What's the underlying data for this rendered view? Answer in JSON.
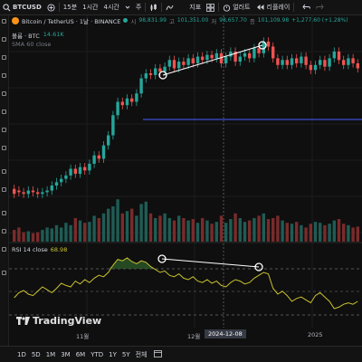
{
  "toolbar": {
    "symbol": "BTCUSD",
    "interval_15m": "15분",
    "interval_1h": "1시간",
    "interval_4h": "4시간",
    "interval_day": "주",
    "indicators": "지표",
    "alert": "얼러트",
    "replay": "리플레이"
  },
  "legend": {
    "title": "Bitcoin / TetherUS · 1날 · BINANCE",
    "open_label": "시",
    "open": "98,831.99",
    "high_label": "고",
    "high": "101,351.00",
    "low_label": "저",
    "low": "98,657.70",
    "close_label": "종",
    "close": "101,109.98",
    "change": "+1,277.60 (+1.28%)",
    "volume_label": "볼륨 · BTC",
    "volume_value": "14.61K",
    "sma_label": "SMA 60 close"
  },
  "rsi": {
    "label": "RSI 14 close",
    "value": "68.98"
  },
  "time_axis": {
    "nov": "11월",
    "dec": "12월",
    "y2025": "2025",
    "crosshair": "2024-12-08"
  },
  "logo": {
    "text": "TradingView"
  },
  "ranges": [
    "1D",
    "5D",
    "1M",
    "3M",
    "6M",
    "YTD",
    "1Y",
    "5Y",
    "전체"
  ],
  "colors": {
    "up": "#26a69a",
    "down": "#ef5350",
    "rsi": "#c9c230",
    "sma": "#4a5ef0"
  },
  "chart_data": {
    "type": "candlestick",
    "candles": [
      [
        0.18,
        0.15
      ],
      [
        0.17,
        0.16
      ],
      [
        0.16,
        0.15
      ],
      [
        0.15,
        0.17
      ],
      [
        0.17,
        0.16
      ],
      [
        0.16,
        0.15
      ],
      [
        0.15,
        0.16
      ],
      [
        0.16,
        0.17
      ],
      [
        0.17,
        0.2
      ],
      [
        0.2,
        0.22
      ],
      [
        0.22,
        0.24
      ],
      [
        0.24,
        0.26
      ],
      [
        0.26,
        0.3
      ],
      [
        0.3,
        0.27
      ],
      [
        0.27,
        0.31
      ],
      [
        0.31,
        0.29
      ],
      [
        0.29,
        0.33
      ],
      [
        0.33,
        0.38
      ],
      [
        0.38,
        0.36
      ],
      [
        0.36,
        0.44
      ],
      [
        0.44,
        0.5
      ],
      [
        0.5,
        0.62
      ],
      [
        0.62,
        0.7
      ],
      [
        0.7,
        0.68
      ],
      [
        0.68,
        0.72
      ],
      [
        0.72,
        0.7
      ],
      [
        0.7,
        0.75
      ],
      [
        0.75,
        0.84
      ],
      [
        0.84,
        0.87
      ],
      [
        0.87,
        0.86
      ],
      [
        0.86,
        0.9
      ],
      [
        0.9,
        0.88
      ],
      [
        0.88,
        0.91
      ],
      [
        0.91,
        0.95
      ],
      [
        0.95,
        0.9
      ],
      [
        0.9,
        0.94
      ],
      [
        0.94,
        0.92
      ],
      [
        0.92,
        0.96
      ],
      [
        0.96,
        0.93
      ],
      [
        0.93,
        0.97
      ],
      [
        0.97,
        0.95
      ],
      [
        0.95,
        0.98
      ],
      [
        0.98,
        0.96
      ],
      [
        0.96,
        0.99
      ],
      [
        0.99,
        0.93
      ],
      [
        0.93,
        0.97
      ],
      [
        0.97,
        1.0
      ],
      [
        1.0,
        0.94
      ],
      [
        0.94,
        0.97
      ],
      [
        0.97,
        0.99
      ],
      [
        0.99,
        0.96
      ],
      [
        0.96,
        1.02
      ],
      [
        1.02,
        0.99
      ],
      [
        0.99,
        1.06
      ],
      [
        1.06,
        1.03
      ],
      [
        1.03,
        0.96
      ],
      [
        0.96,
        0.92
      ],
      [
        0.92,
        0.95
      ],
      [
        0.95,
        0.92
      ],
      [
        0.92,
        0.96
      ],
      [
        0.96,
        0.93
      ],
      [
        0.93,
        0.97
      ],
      [
        0.97,
        0.92
      ],
      [
        0.92,
        0.89
      ],
      [
        0.89,
        0.92
      ],
      [
        0.92,
        0.95
      ],
      [
        0.95,
        0.91
      ],
      [
        0.91,
        0.96
      ],
      [
        0.96,
        1.0
      ],
      [
        1.0,
        0.95
      ],
      [
        0.95,
        0.92
      ],
      [
        0.92,
        0.96
      ],
      [
        0.96,
        0.93
      ],
      [
        0.93,
        0.9
      ]
    ],
    "volumes": [
      0.25,
      0.3,
      0.2,
      0.22,
      0.18,
      0.2,
      0.25,
      0.3,
      0.28,
      0.35,
      0.3,
      0.4,
      0.35,
      0.5,
      0.45,
      0.4,
      0.42,
      0.55,
      0.5,
      0.6,
      0.7,
      0.75,
      0.9,
      0.6,
      0.65,
      0.7,
      0.55,
      0.8,
      0.85,
      0.6,
      0.5,
      0.55,
      0.6,
      0.5,
      0.45,
      0.55,
      0.5,
      0.45,
      0.48,
      0.4,
      0.5,
      0.45,
      0.38,
      0.42,
      0.55,
      0.4,
      0.48,
      0.6,
      0.5,
      0.42,
      0.45,
      0.5,
      0.55,
      0.6,
      0.48,
      0.5,
      0.55,
      0.45,
      0.4,
      0.38,
      0.42,
      0.35,
      0.3,
      0.38,
      0.42,
      0.4,
      0.35,
      0.38,
      0.45,
      0.48,
      0.38,
      0.35,
      0.3,
      0.32
    ],
    "rsi": [
      0.35,
      0.42,
      0.45,
      0.4,
      0.38,
      0.44,
      0.5,
      0.46,
      0.42,
      0.48,
      0.55,
      0.52,
      0.5,
      0.58,
      0.54,
      0.6,
      0.56,
      0.62,
      0.66,
      0.64,
      0.7,
      0.8,
      0.88,
      0.86,
      0.9,
      0.85,
      0.82,
      0.86,
      0.84,
      0.78,
      0.74,
      0.7,
      0.72,
      0.66,
      0.64,
      0.68,
      0.62,
      0.6,
      0.64,
      0.58,
      0.56,
      0.6,
      0.55,
      0.58,
      0.52,
      0.5,
      0.56,
      0.6,
      0.58,
      0.54,
      0.56,
      0.62,
      0.66,
      0.7,
      0.68,
      0.48,
      0.4,
      0.44,
      0.38,
      0.3,
      0.34,
      0.36,
      0.32,
      0.28,
      0.38,
      0.42,
      0.36,
      0.3,
      0.2,
      0.22,
      0.26,
      0.28,
      0.26,
      0.3
    ]
  }
}
